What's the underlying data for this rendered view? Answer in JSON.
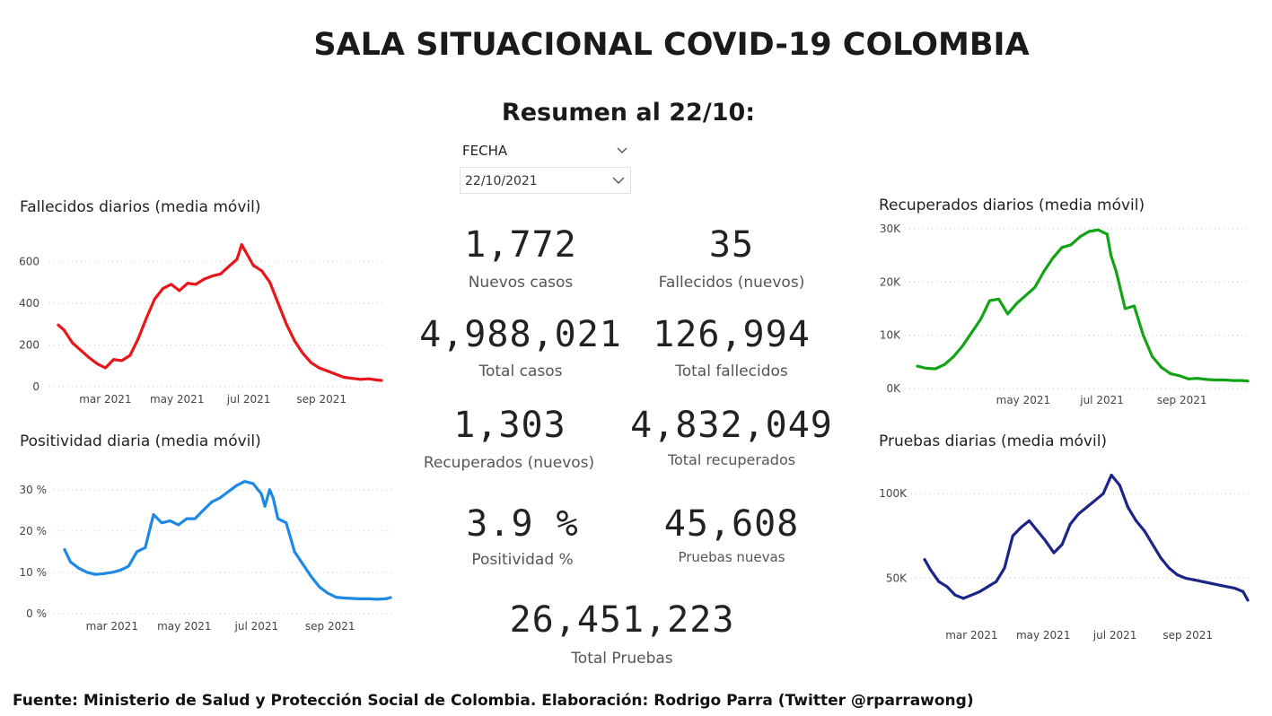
{
  "header": {
    "title": "SALA SITUACIONAL COVID-19 COLOMBIA",
    "subtitle": "Resumen al 22/10:"
  },
  "slicer": {
    "label": "FECHA",
    "value": "22/10/2021",
    "icon": "chevron-down-icon"
  },
  "kpis": {
    "nuevos_casos": {
      "value": "1,772",
      "label": "Nuevos casos"
    },
    "fallecidos_nuevos": {
      "value": "35",
      "label": "Fallecidos (nuevos)"
    },
    "total_casos": {
      "value": "4,988,021",
      "label": "Total casos"
    },
    "total_fallecidos": {
      "value": "126,994",
      "label": "Total fallecidos"
    },
    "recuperados_nuevos": {
      "value": "1,303",
      "label": "Recuperados (nuevos)"
    },
    "total_recuperados": {
      "value": "4,832,049",
      "label": "Total recuperados"
    },
    "positividad": {
      "value": "3.9 %",
      "label": "Positividad %"
    },
    "pruebas_nuevas": {
      "value": "45,608",
      "label": "Pruebas nuevas"
    },
    "total_pruebas": {
      "value": "26,451,223",
      "label": "Total Pruebas"
    }
  },
  "footer": {
    "text": "Fuente: Ministerio de Salud y Protección Social de Colombia. Elaboración: Rodrigo Parra (Twitter @rparrawong)"
  },
  "chart_data": [
    {
      "id": "fallecidos",
      "type": "line",
      "title": "Fallecidos diarios (media móvil)",
      "color": "#e8161b",
      "x_range": [
        "2021-01-20",
        "2021-10-22"
      ],
      "ylim": [
        0,
        700
      ],
      "y_ticks": [
        0,
        200,
        400,
        600
      ],
      "y_tick_labels": [
        "0",
        "200",
        "400",
        "600"
      ],
      "x_ticks": [
        "2021-03-01",
        "2021-05-01",
        "2021-07-01",
        "2021-09-01"
      ],
      "x_tick_labels": [
        "mar 2021",
        "may 2021",
        "jul 2021",
        "sep 2021"
      ],
      "grid": true,
      "series": [
        {
          "x": [
            "2021-01-20",
            "2021-01-25",
            "2021-02-01",
            "2021-02-08",
            "2021-02-15",
            "2021-02-22",
            "2021-03-01",
            "2021-03-08",
            "2021-03-15",
            "2021-03-22",
            "2021-03-29",
            "2021-04-05",
            "2021-04-12",
            "2021-04-19",
            "2021-04-26",
            "2021-05-03",
            "2021-05-10",
            "2021-05-17",
            "2021-05-24",
            "2021-05-31",
            "2021-06-07",
            "2021-06-14",
            "2021-06-21",
            "2021-06-25",
            "2021-06-28",
            "2021-07-05",
            "2021-07-12",
            "2021-07-19",
            "2021-07-26",
            "2021-08-02",
            "2021-08-09",
            "2021-08-16",
            "2021-08-23",
            "2021-08-30",
            "2021-09-06",
            "2021-09-13",
            "2021-09-20",
            "2021-09-27",
            "2021-10-04",
            "2021-10-11",
            "2021-10-18",
            "2021-10-22"
          ],
          "y": [
            295,
            270,
            210,
            175,
            140,
            110,
            90,
            130,
            125,
            150,
            230,
            330,
            420,
            470,
            490,
            460,
            495,
            490,
            515,
            530,
            540,
            575,
            610,
            680,
            650,
            580,
            555,
            500,
            400,
            300,
            220,
            160,
            115,
            90,
            75,
            60,
            45,
            40,
            35,
            38,
            32,
            30
          ]
        }
      ]
    },
    {
      "id": "positividad",
      "type": "line",
      "title": "Positividad diaria (media móvil)",
      "color": "#1e88e5",
      "x_range": [
        "2021-01-20",
        "2021-10-22"
      ],
      "ylim": [
        0,
        33
      ],
      "y_ticks": [
        0,
        10,
        20,
        30
      ],
      "y_tick_labels": [
        "0 %",
        "10 %",
        "20 %",
        "30 %"
      ],
      "x_ticks": [
        "2021-03-01",
        "2021-05-01",
        "2021-07-01",
        "2021-09-01"
      ],
      "x_tick_labels": [
        "mar 2021",
        "may 2021",
        "jul 2021",
        "sep 2021"
      ],
      "grid": true,
      "series": [
        {
          "x": [
            "2021-01-20",
            "2021-01-25",
            "2021-02-01",
            "2021-02-08",
            "2021-02-15",
            "2021-02-22",
            "2021-03-01",
            "2021-03-08",
            "2021-03-15",
            "2021-03-22",
            "2021-03-29",
            "2021-04-05",
            "2021-04-12",
            "2021-04-19",
            "2021-04-26",
            "2021-05-03",
            "2021-05-10",
            "2021-05-17",
            "2021-05-24",
            "2021-05-31",
            "2021-06-07",
            "2021-06-14",
            "2021-06-21",
            "2021-06-28",
            "2021-07-05",
            "2021-07-08",
            "2021-07-12",
            "2021-07-15",
            "2021-07-19",
            "2021-07-26",
            "2021-08-02",
            "2021-08-09",
            "2021-08-16",
            "2021-08-23",
            "2021-08-30",
            "2021-09-06",
            "2021-09-13",
            "2021-09-20",
            "2021-09-27",
            "2021-10-04",
            "2021-10-11",
            "2021-10-18",
            "2021-10-22"
          ],
          "y": [
            15.5,
            12.5,
            11,
            10,
            9.5,
            9.7,
            10,
            10.5,
            11.5,
            15,
            16,
            24,
            22,
            22.5,
            21.5,
            23,
            23,
            25,
            27,
            28,
            29.5,
            31,
            32,
            31.5,
            29,
            26,
            30,
            28,
            23,
            22,
            15,
            12,
            9,
            6.5,
            5,
            4,
            3.8,
            3.7,
            3.6,
            3.6,
            3.5,
            3.6,
            3.9
          ]
        }
      ]
    },
    {
      "id": "recuperados",
      "type": "line",
      "title": "Recuperados diarios (media móvil)",
      "color": "#13a316",
      "x_range": [
        "2021-02-08",
        "2021-10-22"
      ],
      "ylim": [
        0,
        30000
      ],
      "y_ticks": [
        0,
        10000,
        20000,
        30000
      ],
      "y_tick_labels": [
        "0K",
        "10K",
        "20K",
        "30K"
      ],
      "x_ticks": [
        "2021-05-01",
        "2021-07-01",
        "2021-09-01"
      ],
      "x_tick_labels": [
        "may 2021",
        "jul 2021",
        "sep 2021"
      ],
      "grid": true,
      "series": [
        {
          "x": [
            "2021-02-08",
            "2021-02-15",
            "2021-02-22",
            "2021-03-01",
            "2021-03-08",
            "2021-03-15",
            "2021-03-22",
            "2021-03-29",
            "2021-04-05",
            "2021-04-12",
            "2021-04-19",
            "2021-04-26",
            "2021-05-03",
            "2021-05-10",
            "2021-05-17",
            "2021-05-24",
            "2021-05-31",
            "2021-06-07",
            "2021-06-14",
            "2021-06-21",
            "2021-06-28",
            "2021-07-05",
            "2021-07-08",
            "2021-07-12",
            "2021-07-19",
            "2021-07-26",
            "2021-08-02",
            "2021-08-09",
            "2021-08-16",
            "2021-08-23",
            "2021-08-30",
            "2021-09-06",
            "2021-09-13",
            "2021-09-20",
            "2021-09-27",
            "2021-10-04",
            "2021-10-11",
            "2021-10-18",
            "2021-10-22"
          ],
          "y": [
            4200,
            3800,
            3700,
            4500,
            6000,
            8000,
            10500,
            13000,
            16500,
            16800,
            14000,
            16000,
            17500,
            19000,
            22000,
            24500,
            26500,
            27000,
            28500,
            29500,
            29800,
            29000,
            25000,
            22000,
            15000,
            15500,
            10000,
            6000,
            4000,
            2800,
            2400,
            1800,
            1900,
            1700,
            1600,
            1600,
            1500,
            1500,
            1400
          ]
        }
      ]
    },
    {
      "id": "pruebas",
      "type": "line",
      "title": "Pruebas diarias (media móvil)",
      "color": "#1b2588",
      "x_range": [
        "2021-01-20",
        "2021-10-22"
      ],
      "ylim": [
        30000,
        115000
      ],
      "y_ticks": [
        50000,
        100000
      ],
      "y_tick_labels": [
        "50K",
        "100K"
      ],
      "x_ticks": [
        "2021-03-01",
        "2021-05-01",
        "2021-07-01",
        "2021-09-01"
      ],
      "x_tick_labels": [
        "mar 2021",
        "may 2021",
        "jul 2021",
        "sep 2021"
      ],
      "grid": true,
      "series": [
        {
          "x": [
            "2021-01-20",
            "2021-01-25",
            "2021-02-01",
            "2021-02-08",
            "2021-02-15",
            "2021-02-22",
            "2021-03-01",
            "2021-03-08",
            "2021-03-15",
            "2021-03-22",
            "2021-03-29",
            "2021-04-05",
            "2021-04-12",
            "2021-04-19",
            "2021-04-26",
            "2021-05-03",
            "2021-05-10",
            "2021-05-17",
            "2021-05-24",
            "2021-05-31",
            "2021-06-07",
            "2021-06-14",
            "2021-06-21",
            "2021-06-28",
            "2021-07-05",
            "2021-07-12",
            "2021-07-19",
            "2021-07-26",
            "2021-08-02",
            "2021-08-09",
            "2021-08-16",
            "2021-08-23",
            "2021-08-30",
            "2021-09-06",
            "2021-09-13",
            "2021-09-20",
            "2021-09-27",
            "2021-10-04",
            "2021-10-11",
            "2021-10-18",
            "2021-10-22"
          ],
          "y": [
            61000,
            55000,
            48000,
            45000,
            40000,
            38000,
            40000,
            42000,
            45000,
            48000,
            56000,
            75000,
            80000,
            84000,
            78000,
            72000,
            65000,
            70000,
            82000,
            88000,
            92000,
            96000,
            100000,
            111000,
            105000,
            92000,
            84000,
            78000,
            70000,
            62000,
            56000,
            52000,
            50000,
            49000,
            48000,
            47000,
            46000,
            45000,
            44000,
            42000,
            37000
          ]
        }
      ]
    }
  ]
}
